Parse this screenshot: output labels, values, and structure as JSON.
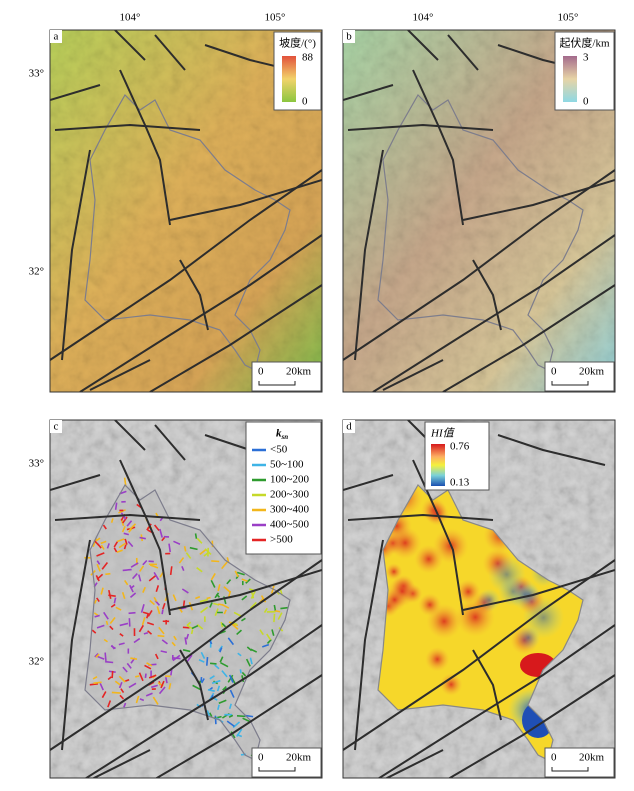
{
  "panels": [
    {
      "label": "a",
      "lon_labels": [
        "104°",
        "105°"
      ],
      "lat_labels": [
        "33°",
        "32°"
      ],
      "legend": {
        "title": "坡度/(°)",
        "max": "88",
        "min": "0"
      },
      "scale": {
        "zero": "0",
        "length": "20km"
      }
    },
    {
      "label": "b",
      "lon_labels": [
        "104°",
        "105°"
      ],
      "lat_labels": [],
      "legend": {
        "title": "起伏度/km",
        "max": "3",
        "min": "0"
      },
      "scale": {
        "zero": "0",
        "length": "20km"
      }
    },
    {
      "label": "c",
      "lat_labels": [
        "33°",
        "32°"
      ],
      "legend": {
        "title": "k",
        "title_sub": "sn",
        "classes": [
          {
            "label": "<50",
            "color": "#2b6fd6"
          },
          {
            "label": "50~100",
            "color": "#3fb4e6"
          },
          {
            "label": "100~200",
            "color": "#2e9b2e"
          },
          {
            "label": "200~300",
            "color": "#c6d92a"
          },
          {
            "label": "300~400",
            "color": "#f2b61c"
          },
          {
            "label": "400~500",
            "color": "#9a3fc6"
          },
          {
            "label": ">500",
            "color": "#e42424"
          }
        ]
      },
      "scale": {
        "zero": "0",
        "length": "20km"
      }
    },
    {
      "label": "d",
      "lat_labels": [],
      "legend": {
        "title": "HI值",
        "max": "0.76",
        "min": "0.13"
      },
      "scale": {
        "zero": "0",
        "length": "20km"
      }
    }
  ]
}
